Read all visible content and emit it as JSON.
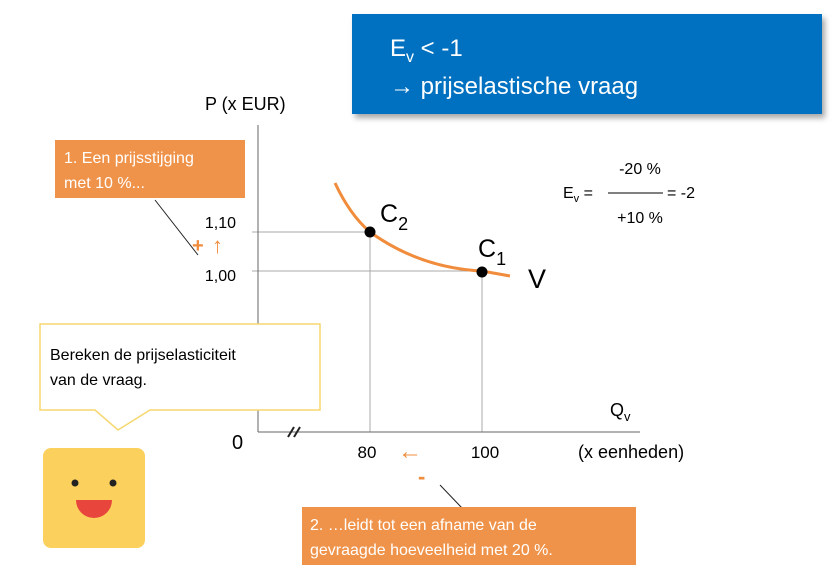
{
  "banner": {
    "e": "E",
    "e_sub": "v",
    "condition": " < -1",
    "conclusion": "→ prijselastische vraag"
  },
  "axes": {
    "y_label": "P (x EUR)",
    "x_label": "Q",
    "x_label_sub": "v",
    "x_unit": "(x eenheden)",
    "origin": "0",
    "x_ticks": [
      "80",
      "100"
    ],
    "y_ticks": [
      "1,10",
      "1,00"
    ]
  },
  "points": [
    {
      "label": "C",
      "sub": "2"
    },
    {
      "label": "C",
      "sub": "1"
    }
  ],
  "curve_label": "V",
  "formula": {
    "e": "E",
    "e_sub": "v",
    "eq": " =",
    "numerator": "-20 %",
    "denominator": "+10 %",
    "result": "= -2"
  },
  "callout_1": {
    "lines": [
      "1. Een prijsstijging",
      "met 10 %..."
    ],
    "sign": "+",
    "arrow": "↑"
  },
  "callout_2": {
    "lines": [
      "2. …leidt tot een afname van de",
      "gevraagde hoeveelheid met 20 %."
    ],
    "arrow": "←",
    "sign": "-"
  },
  "speech": {
    "lines": [
      "Bereken de prijselasticiteit",
      "van de vraag."
    ]
  }
}
